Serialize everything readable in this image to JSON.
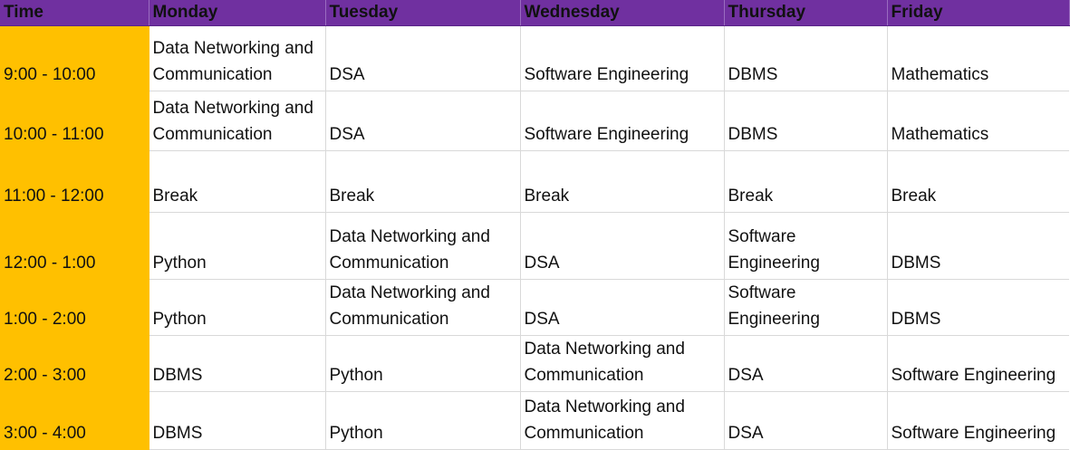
{
  "header": {
    "time": "Time",
    "days": [
      "Monday",
      "Tuesday",
      "Wednesday",
      "Thursday",
      "Friday"
    ]
  },
  "rows": [
    {
      "time": "9:00 - 10:00",
      "cells": [
        "Data Networking and Communication",
        "DSA",
        "Software Engineering",
        "DBMS",
        "Mathematics"
      ]
    },
    {
      "time": "10:00 - 11:00",
      "cells": [
        "Data Networking and Communication",
        "DSA",
        "Software Engineering",
        "DBMS",
        "Mathematics"
      ]
    },
    {
      "time": "11:00 - 12:00",
      "cells": [
        "Break",
        "Break",
        "Break",
        "Break",
        "Break"
      ]
    },
    {
      "time": "12:00 - 1:00",
      "cells": [
        "Python",
        "Data Networking and Communication",
        "DSA",
        "Software Engineering",
        "DBMS"
      ]
    },
    {
      "time": "1:00 - 2:00",
      "cells": [
        "Python",
        "Data Networking and Communication",
        "DSA",
        "Software Engineering",
        "DBMS"
      ]
    },
    {
      "time": "2:00 - 3:00",
      "cells": [
        "DBMS",
        "Python",
        "Data Networking and Communication",
        "DSA",
        "Software Engineering"
      ]
    },
    {
      "time": "3:00 - 4:00",
      "cells": [
        "DBMS",
        "Python",
        "Data Networking and Communication",
        "DSA",
        "Software Engineering"
      ]
    }
  ],
  "colors": {
    "header_bg": "#7030a0",
    "time_bg": "#ffc000"
  }
}
